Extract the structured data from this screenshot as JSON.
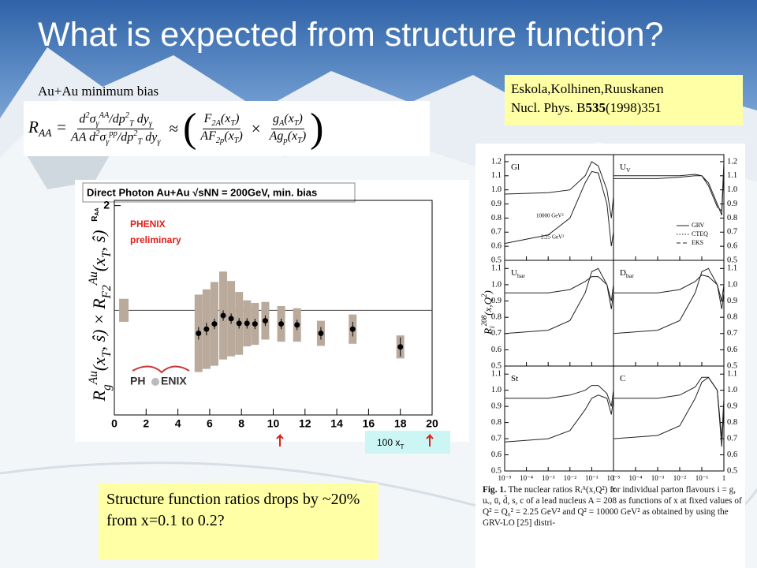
{
  "title": "What is expected from structure function?",
  "subtitle": "Au+Au minimum bias",
  "reference": {
    "authors": "Eskola,Kolhinen,Ruuskanen",
    "journal": "Nucl. Phys. B",
    "volume": "535",
    "pages": "(1998)351"
  },
  "formula": {
    "lhs": [
      [
        "R",
        ""
      ],
      [
        "AA",
        "sub"
      ],
      [
        " =",
        ""
      ]
    ],
    "f1n": [
      [
        "d",
        ""
      ],
      [
        "2",
        "sup"
      ],
      [
        "σ",
        ""
      ],
      [
        "γ",
        "sub"
      ],
      [
        "AA",
        "sup"
      ],
      [
        "/dp",
        ""
      ],
      [
        "2",
        "sup"
      ],
      [
        "T",
        "sub"
      ],
      [
        " dy",
        ""
      ],
      [
        "γ",
        "sub"
      ]
    ],
    "f1d": [
      [
        "AA d",
        ""
      ],
      [
        "2",
        "sup"
      ],
      [
        "σ",
        ""
      ],
      [
        "γ",
        "sub"
      ],
      [
        "pp",
        "sup"
      ],
      [
        "/dp",
        ""
      ],
      [
        "2",
        "sup"
      ],
      [
        "T",
        "sub"
      ],
      [
        " dy",
        ""
      ],
      [
        "γ",
        "sub"
      ]
    ],
    "approx": "≈",
    "f2n": [
      [
        "F",
        ""
      ],
      [
        "2A",
        "sub"
      ],
      [
        "(x",
        ""
      ],
      [
        "T",
        "sub"
      ],
      [
        ")",
        ""
      ]
    ],
    "f2d": [
      [
        "AF",
        ""
      ],
      [
        "2p",
        "sub"
      ],
      [
        "(x",
        ""
      ],
      [
        "T",
        "sub"
      ],
      [
        ")",
        ""
      ]
    ],
    "times": "×",
    "f3n": [
      [
        "g",
        ""
      ],
      [
        "A",
        "sub"
      ],
      [
        "(x",
        ""
      ],
      [
        "T",
        "sub"
      ],
      [
        ")",
        ""
      ]
    ],
    "f3d": [
      [
        "Ag",
        ""
      ],
      [
        "p",
        "sub"
      ],
      [
        "(x",
        ""
      ],
      [
        "T",
        "sub"
      ],
      [
        ")",
        ""
      ]
    ]
  },
  "overlay_label": [
    [
      "R",
      ""
    ],
    [
      "g",
      "sub"
    ],
    [
      "Au",
      "sup"
    ],
    [
      "(x",
      ""
    ],
    [
      "T",
      "sub"
    ],
    [
      ", ŝ) × R",
      ""
    ],
    [
      "F2",
      "sub"
    ],
    [
      "Au",
      "sup"
    ],
    [
      "(x",
      ""
    ],
    [
      "T",
      "sub"
    ],
    [
      ", ŝ)",
      ""
    ]
  ],
  "conclusion": "Structure function ratios drops by ~20% from x=0.1 to 0.2?",
  "caption": {
    "label": "Fig. 1.",
    "text": "The nuclear ratios Rᵢᴬ(x,Q²) for individual parton flavours i = g, uᵥ, ū, d̄, s, c of a lead nucleus A = 208 as functions of x at fixed values of Q² = Q₀² = 2.25 GeV² and Q² = 10000 GeV² as obtained by using the GRV-LO [25] distri-"
  },
  "chart_data": [
    {
      "type": "errorbar",
      "title": "Direct Photon Au+Au √sNN = 200GeV, min. bias",
      "ylabel": [
        [
          "R",
          ""
        ],
        [
          "AA",
          "sub"
        ]
      ],
      "xlabel": [
        [
          "100 x",
          ""
        ],
        [
          "T",
          "sub"
        ]
      ],
      "experiment": "PHENIX",
      "note": "preliminary",
      "logo": [
        "PH",
        "ENIX"
      ],
      "x": [
        5.3,
        5.8,
        6.3,
        6.85,
        7.35,
        7.85,
        8.35,
        8.85,
        9.5,
        10.5,
        11.5,
        13.0,
        15.0,
        18.0
      ],
      "values": [
        0.78,
        0.82,
        0.87,
        0.95,
        0.92,
        0.875,
        0.875,
        0.87,
        0.9,
        0.87,
        0.86,
        0.78,
        0.82,
        0.65
      ],
      "errors": [
        0.06,
        0.06,
        0.05,
        0.05,
        0.05,
        0.05,
        0.05,
        0.05,
        0.05,
        0.05,
        0.05,
        0.06,
        0.07,
        0.09
      ],
      "sys": [
        0.37,
        0.38,
        0.4,
        0.42,
        0.36,
        0.3,
        0.22,
        0.2,
        0.18,
        0.17,
        0.16,
        0.12,
        0.14,
        0.11
      ],
      "norm": {
        "x": 0.6,
        "value": 1,
        "error": 0.11
      },
      "refline": 1,
      "xlim": [
        0,
        20
      ],
      "ylim": [
        0,
        2.05
      ],
      "xticks": [
        0,
        2,
        4,
        6,
        8,
        10,
        12,
        14,
        16,
        18,
        20
      ],
      "yticks": [
        2
      ],
      "marker_color": "#000000",
      "sys_color": "#b9aa9c"
    },
    {
      "type": "line",
      "xscale": "log",
      "x": [
        1e-05,
        0.001,
        0.01,
        0.05,
        0.1,
        0.2,
        0.5,
        0.8,
        1
      ],
      "xlim": [
        1e-05,
        1
      ],
      "xticks": [
        {
          "value": 1e-05,
          "label": "10⁻⁵"
        },
        {
          "value": 0.0001,
          "label": "10⁻⁴"
        },
        {
          "value": 0.001,
          "label": "10⁻³"
        },
        {
          "value": 0.01,
          "label": "10⁻²"
        },
        {
          "value": 0.1,
          "label": "10⁻¹"
        },
        1
      ],
      "xlabel": "x",
      "ylabel": [
        [
          "R",
          ""
        ],
        [
          "i",
          "sub"
        ],
        [
          "208",
          "sup"
        ],
        [
          "(x,Q",
          ""
        ],
        [
          "2",
          "sup"
        ],
        [
          ")",
          ""
        ]
      ],
      "legend": [
        {
          "name": "GRV",
          "dash": "solid"
        },
        {
          "name": "CTEQ",
          "dash": "dotted"
        },
        {
          "name": "EKS",
          "dash": "dashed"
        }
      ],
      "panels": [
        {
          "label": [
            [
              "Gl",
              ""
            ]
          ],
          "ylim": [
            0.5,
            1.25
          ],
          "yticks": [
            0.5,
            0.6,
            0.7,
            0.8,
            0.9,
            {
              "value": 1,
              "label": "1.0"
            },
            1.1,
            1.2
          ],
          "series": [
            {
              "name": "10000 GeV²",
              "values": [
                0.97,
                0.98,
                1.0,
                1.1,
                1.2,
                1.17,
                1.0,
                0.8,
                0.95
              ]
            },
            {
              "name": "2.25 GeV²",
              "values": [
                0.62,
                0.68,
                0.8,
                1.05,
                1.13,
                1.12,
                0.9,
                0.6,
                0.7
              ]
            }
          ]
        },
        {
          "label": [
            [
              "U",
              ""
            ],
            [
              "V",
              "sub"
            ]
          ],
          "ylim": [
            0.5,
            1.25
          ],
          "yticks": [
            0.5,
            0.6,
            0.7,
            0.8,
            0.9,
            {
              "value": 1,
              "label": "1.0"
            },
            1.1,
            1.2
          ],
          "series": [
            {
              "values": [
                1.1,
                1.1,
                1.1,
                1.11,
                1.1,
                1.03,
                0.88,
                0.85,
                1.2
              ]
            },
            {
              "values": [
                1.08,
                1.08,
                1.09,
                1.1,
                1.1,
                1.05,
                0.9,
                0.82,
                1.15
              ]
            }
          ]
        },
        {
          "label": [
            [
              "U",
              ""
            ],
            [
              "bar",
              "sub"
            ]
          ],
          "ylim": [
            0.5,
            1.15
          ],
          "yticks": [
            0.5,
            0.6,
            0.7,
            0.8,
            0.9,
            {
              "value": 1,
              "label": "1.0"
            },
            1.1
          ],
          "series": [
            {
              "values": [
                0.95,
                0.95,
                0.97,
                1.02,
                1.05,
                1.05,
                1.0,
                0.9,
                1.0
              ]
            },
            {
              "values": [
                0.7,
                0.72,
                0.78,
                0.95,
                1.08,
                1.1,
                1.0,
                0.85,
                0.95
              ]
            }
          ]
        },
        {
          "label": [
            [
              "D",
              ""
            ],
            [
              "bar",
              "sub"
            ]
          ],
          "ylim": [
            0.5,
            1.15
          ],
          "yticks": [
            0.5,
            0.6,
            0.7,
            0.8,
            0.9,
            {
              "value": 1,
              "label": "1.0"
            },
            1.1
          ],
          "series": [
            {
              "values": [
                0.95,
                0.95,
                0.97,
                1.02,
                1.06,
                1.05,
                1.0,
                0.9,
                1.0
              ]
            },
            {
              "values": [
                0.7,
                0.72,
                0.78,
                0.95,
                1.08,
                1.1,
                1.0,
                0.85,
                0.95
              ]
            }
          ]
        },
        {
          "label": [
            [
              "St",
              ""
            ]
          ],
          "ylim": [
            0.5,
            1.15
          ],
          "yticks": [
            0.5,
            0.6,
            0.7,
            0.8,
            0.9,
            {
              "value": 1,
              "label": "1.0"
            },
            1.1
          ],
          "series": [
            {
              "values": [
                0.95,
                0.95,
                0.97,
                1.0,
                1.03,
                1.03,
                0.98,
                0.9,
                1.0
              ]
            },
            {
              "values": [
                0.68,
                0.7,
                0.75,
                0.88,
                0.95,
                0.97,
                0.95,
                0.85,
                0.95
              ]
            }
          ]
        },
        {
          "label": [
            [
              "C",
              ""
            ]
          ],
          "ylim": [
            0.5,
            1.15
          ],
          "yticks": [
            0.5,
            0.6,
            0.7,
            0.8,
            0.9,
            {
              "value": 1,
              "label": "1.0"
            },
            1.1
          ],
          "series": [
            {
              "values": [
                0.95,
                0.95,
                0.97,
                1.02,
                1.08,
                1.08,
                1.0,
                0.7,
                0.95
              ]
            },
            {
              "values": [
                0.7,
                0.72,
                0.78,
                0.95,
                1.05,
                1.08,
                1.0,
                0.65,
                0.9
              ]
            }
          ]
        }
      ]
    }
  ]
}
